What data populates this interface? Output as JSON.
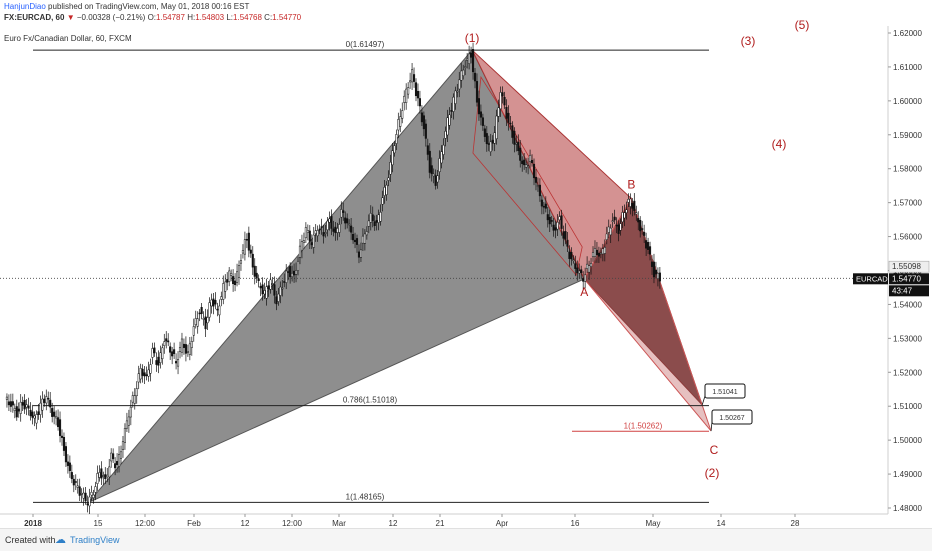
{
  "header": {
    "user": "HanjunDiao",
    "published_text": "published on TradingView.com, May 01, 2018 00:16 EST",
    "symbol": "FX:EURCAD, 60",
    "change": "−0.00328 (−0.21%)",
    "o_label": "O:",
    "o_val": "1.54787",
    "h_label": "H:",
    "h_val": "1.54803",
    "l_label": "L:",
    "l_val": "1.54768",
    "c_label": "C:",
    "c_val": "1.54770",
    "series_title": "Euro Fx/Canadian Dollar, 60, FXCM"
  },
  "footer": {
    "created": "Created with",
    "brand": "TradingView"
  },
  "colors": {
    "grey_fill": "#7a7a7a",
    "red_fill": "#b84a4a",
    "dark_fill": "#5a2f2f",
    "label_red": "#b01c1c",
    "candle": "#111111"
  },
  "chart_data": {
    "type": "candlestick",
    "symbol": "EURCAD",
    "ylim": [
      1.475,
      1.625
    ],
    "y_ticks": [
      "1.62000",
      "1.61000",
      "1.60000",
      "1.59000",
      "1.58000",
      "1.57000",
      "1.56000",
      "1.55000",
      "1.54000",
      "1.53000",
      "1.52000",
      "1.51000",
      "1.50000",
      "1.49000",
      "1.48000"
    ],
    "x_ticks": [
      "2018",
      "15",
      "12:00",
      "Feb",
      "12",
      "12:00",
      "Mar",
      "12",
      "21",
      "Apr",
      "16",
      "May",
      "14",
      "28"
    ],
    "last_price": "1.54770",
    "last_price_label": "EURCAD",
    "countdown": "43:47",
    "level_label": "1.55098",
    "fib_levels": [
      {
        "label": "0(1.61497)",
        "value": 1.61497
      },
      {
        "label": "0.786(1.51018)",
        "value": 1.51018
      },
      {
        "label": "1(1.48165)",
        "value": 1.48165
      },
      {
        "label": "1(1.50262)",
        "value": 1.50262
      }
    ],
    "targets": [
      {
        "label": "1.51041",
        "value": 1.51041
      },
      {
        "label": "1.50267",
        "value": 1.50267
      }
    ],
    "pattern_points": [
      {
        "label": "(1)",
        "price": 1.61497
      },
      {
        "label": "A",
        "price": 1.5475
      },
      {
        "label": "B",
        "price": 1.5712
      },
      {
        "label": "C",
        "price": 1.5027
      }
    ],
    "wave_labels": [
      "(1)",
      "(2)",
      "(3)",
      "(4)",
      "(5)"
    ],
    "price_path": [
      [
        0,
        1.512
      ],
      [
        1,
        1.5105
      ],
      [
        2,
        1.508
      ],
      [
        3,
        1.511
      ],
      [
        4,
        1.509
      ],
      [
        5,
        1.506
      ],
      [
        6,
        1.51
      ],
      [
        7,
        1.513
      ],
      [
        8,
        1.508
      ],
      [
        9,
        1.505
      ],
      [
        10,
        1.497
      ],
      [
        11,
        1.49
      ],
      [
        12,
        1.4865
      ],
      [
        13,
        1.484
      ],
      [
        14,
        1.4817
      ],
      [
        15,
        1.485
      ],
      [
        16,
        1.491
      ],
      [
        17,
        1.488
      ],
      [
        18,
        1.495
      ],
      [
        19,
        1.492
      ],
      [
        20,
        1.5
      ],
      [
        21,
        1.508
      ],
      [
        22,
        1.514
      ],
      [
        23,
        1.521
      ],
      [
        24,
        1.518
      ],
      [
        25,
        1.526
      ],
      [
        26,
        1.522
      ],
      [
        27,
        1.53
      ],
      [
        28,
        1.527
      ],
      [
        29,
        1.523
      ],
      [
        30,
        1.529
      ],
      [
        31,
        1.525
      ],
      [
        32,
        1.533
      ],
      [
        33,
        1.538
      ],
      [
        34,
        1.534
      ],
      [
        35,
        1.542
      ],
      [
        36,
        1.538
      ],
      [
        37,
        1.545
      ],
      [
        38,
        1.549
      ],
      [
        39,
        1.546
      ],
      [
        40,
        1.554
      ],
      [
        41,
        1.56
      ],
      [
        42,
        1.551
      ],
      [
        43,
        1.546
      ],
      [
        44,
        1.543
      ],
      [
        45,
        1.547
      ],
      [
        46,
        1.541
      ],
      [
        47,
        1.546
      ],
      [
        48,
        1.55
      ],
      [
        49,
        1.548
      ],
      [
        50,
        1.556
      ],
      [
        51,
        1.562
      ],
      [
        52,
        1.558
      ],
      [
        53,
        1.563
      ],
      [
        54,
        1.561
      ],
      [
        55,
        1.565
      ],
      [
        56,
        1.56
      ],
      [
        57,
        1.567
      ],
      [
        58,
        1.564
      ],
      [
        59,
        1.56
      ],
      [
        60,
        1.555
      ],
      [
        61,
        1.561
      ],
      [
        62,
        1.566
      ],
      [
        63,
        1.563
      ],
      [
        64,
        1.571
      ],
      [
        65,
        1.578
      ],
      [
        66,
        1.588
      ],
      [
        67,
        1.596
      ],
      [
        68,
        1.603
      ],
      [
        69,
        1.608
      ],
      [
        70,
        1.6
      ],
      [
        71,
        1.592
      ],
      [
        72,
        1.58
      ],
      [
        73,
        1.576
      ],
      [
        74,
        1.585
      ],
      [
        75,
        1.594
      ],
      [
        76,
        1.6
      ],
      [
        77,
        1.606
      ],
      [
        78,
        1.611
      ],
      [
        79,
        1.614
      ],
      [
        80,
        1.6
      ],
      [
        81,
        1.592
      ],
      [
        82,
        1.586
      ],
      [
        83,
        1.59
      ],
      [
        84,
        1.603
      ],
      [
        85,
        1.596
      ],
      [
        86,
        1.59
      ],
      [
        87,
        1.585
      ],
      [
        88,
        1.58
      ],
      [
        89,
        1.583
      ],
      [
        90,
        1.576
      ],
      [
        91,
        1.57
      ],
      [
        92,
        1.566
      ],
      [
        93,
        1.562
      ],
      [
        94,
        1.565
      ],
      [
        95,
        1.558
      ],
      [
        96,
        1.553
      ],
      [
        97,
        1.55
      ],
      [
        98,
        1.548
      ],
      [
        99,
        1.552
      ],
      [
        100,
        1.556
      ],
      [
        101,
        1.554
      ],
      [
        102,
        1.56
      ],
      [
        103,
        1.565
      ],
      [
        104,
        1.562
      ],
      [
        105,
        1.568
      ],
      [
        106,
        1.571
      ],
      [
        107,
        1.566
      ],
      [
        108,
        1.561
      ],
      [
        109,
        1.556
      ],
      [
        110,
        1.549
      ],
      [
        111,
        1.548
      ]
    ]
  }
}
